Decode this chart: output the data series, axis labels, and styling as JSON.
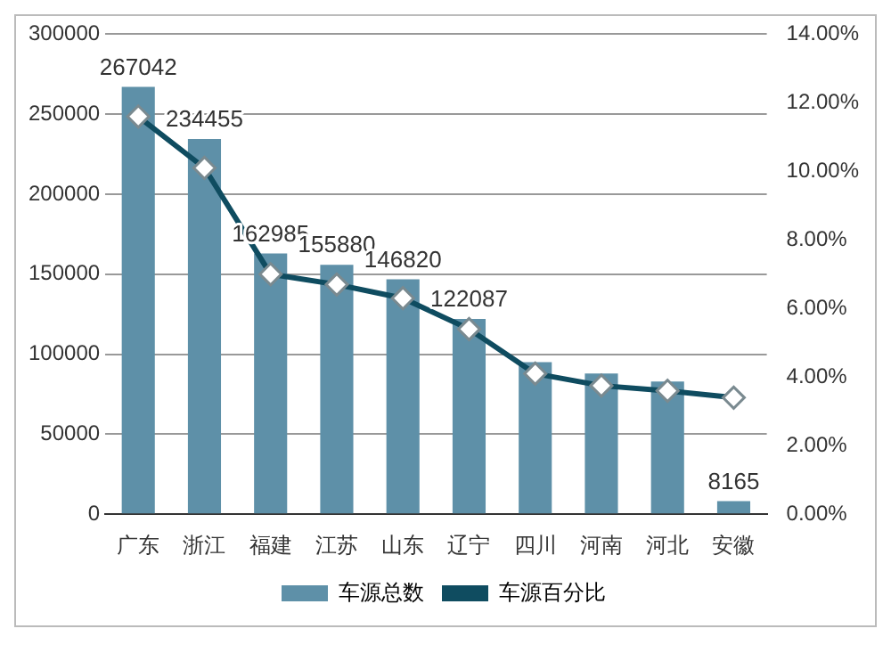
{
  "chart_data": {
    "type": "bar",
    "categories": [
      "广东",
      "浙江",
      "福建",
      "江苏",
      "山东",
      "辽宁",
      "四川",
      "河南",
      "河北",
      "安徽"
    ],
    "series": [
      {
        "name": "车源总数",
        "color": "#5e90a8",
        "values": [
          267042,
          234455,
          162985,
          155880,
          146820,
          122087,
          95000,
          88000,
          83000,
          8165
        ],
        "value_labels": [
          "267042",
          "234455",
          "162985",
          "155880",
          "146820",
          "122087",
          null,
          null,
          null,
          "8165"
        ]
      },
      {
        "name": "车源百分比",
        "type": "line",
        "axis": "y2",
        "color": "#0f4c60",
        "marker": "diamond",
        "values": [
          11.6,
          10.1,
          7.0,
          6.7,
          6.3,
          5.4,
          4.1,
          3.75,
          3.6,
          3.4
        ]
      }
    ],
    "ylim": [
      0,
      300000
    ],
    "yticks": [
      0,
      50000,
      100000,
      150000,
      200000,
      250000,
      300000
    ],
    "y2lim": [
      0,
      14
    ],
    "y2ticks": [
      {
        "value": 0,
        "label": "0.00%"
      },
      {
        "value": 2,
        "label": "2.00%"
      },
      {
        "value": 4,
        "label": "4.00%"
      },
      {
        "value": 6,
        "label": "6.00%"
      },
      {
        "value": 8,
        "label": "8.00%"
      },
      {
        "value": 10,
        "label": "10.00%"
      },
      {
        "value": 12,
        "label": "12.00%"
      },
      {
        "value": 14,
        "label": "14.00%"
      }
    ],
    "grid": "y",
    "legend": "bottom"
  }
}
